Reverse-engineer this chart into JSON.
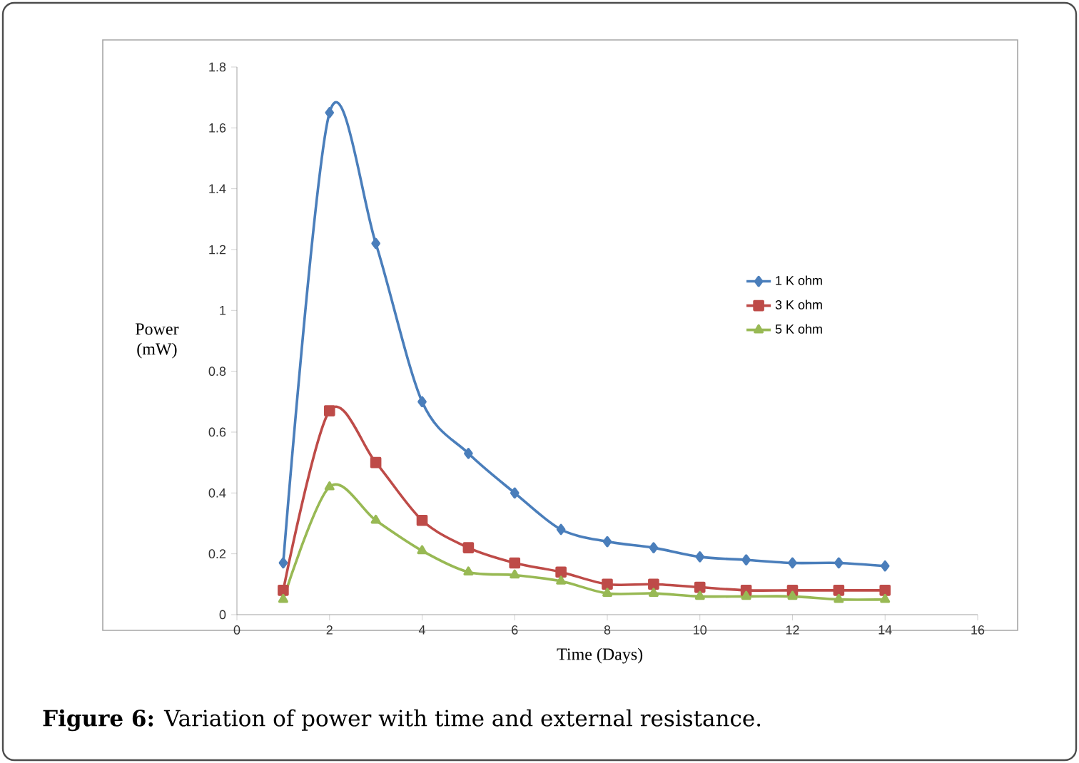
{
  "chart_data": {
    "type": "line",
    "xlabel": "Time (Days)",
    "ylabel": "Power (mW)",
    "annotations": [
      "**Figure 6:** Variation of power with time and external resistance."
    ],
    "x": [
      1,
      2,
      3,
      4,
      5,
      6,
      7,
      8,
      9,
      10,
      11,
      12,
      13,
      14
    ],
    "xlim": [
      0,
      16
    ],
    "xticks": [
      0,
      2,
      4,
      6,
      8,
      10,
      12,
      14,
      16
    ],
    "ylim": [
      0,
      1.8
    ],
    "yticks": [
      0,
      0.2,
      0.4,
      0.6,
      0.8,
      1,
      1.2,
      1.4,
      1.6,
      1.8
    ],
    "grid": false,
    "legend": "right",
    "series": [
      {
        "name": "1 K ohm",
        "color": "#4a7ebb",
        "marker": "diamond",
        "values": [
          0.17,
          1.65,
          1.22,
          0.7,
          0.53,
          0.4,
          0.28,
          0.24,
          0.22,
          0.19,
          0.18,
          0.17,
          0.17,
          0.16
        ]
      },
      {
        "name": "3 K ohm",
        "color": "#be4b48",
        "marker": "square",
        "values": [
          0.08,
          0.67,
          0.5,
          0.31,
          0.22,
          0.17,
          0.14,
          0.1,
          0.1,
          0.09,
          0.08,
          0.08,
          0.08,
          0.08
        ]
      },
      {
        "name": "5 K ohm",
        "color": "#98b954",
        "marker": "triangle",
        "values": [
          0.05,
          0.42,
          0.31,
          0.21,
          0.14,
          0.13,
          0.11,
          0.07,
          0.07,
          0.06,
          0.06,
          0.06,
          0.05,
          0.05
        ]
      }
    ]
  }
}
